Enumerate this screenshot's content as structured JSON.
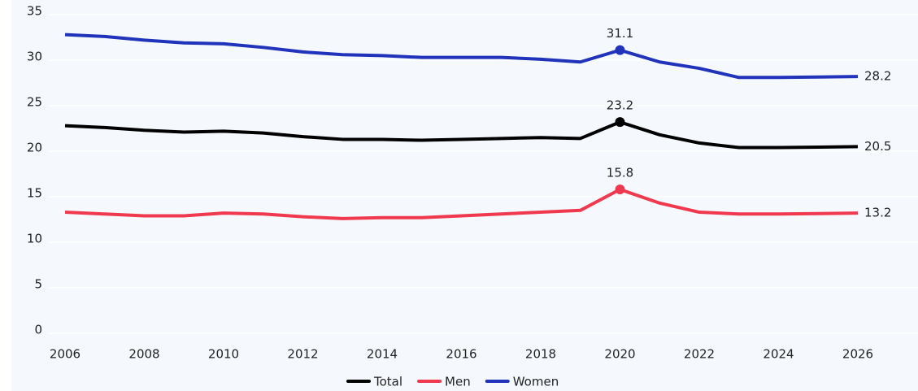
{
  "chart_data": {
    "type": "line",
    "x": [
      2006,
      2007,
      2008,
      2009,
      2010,
      2011,
      2012,
      2013,
      2014,
      2015,
      2016,
      2017,
      2018,
      2019,
      2020,
      2021,
      2022,
      2023,
      2024,
      2025,
      2026
    ],
    "series": [
      {
        "name": "Total",
        "color": "#000000",
        "values": [
          22.8,
          22.6,
          22.3,
          22.1,
          22.2,
          22.0,
          21.6,
          21.3,
          21.3,
          21.2,
          21.3,
          21.4,
          21.5,
          21.4,
          23.2,
          21.8,
          20.9,
          20.4,
          20.4,
          20.45,
          20.5
        ],
        "value_labels": [
          null,
          null,
          null,
          null,
          null,
          null,
          null,
          null,
          null,
          null,
          null,
          null,
          null,
          null,
          "23.2",
          null,
          null,
          null,
          null,
          null,
          "20.5"
        ]
      },
      {
        "name": "Men",
        "color": "#f0394f",
        "values": [
          13.3,
          13.1,
          12.9,
          12.9,
          13.2,
          13.1,
          12.8,
          12.6,
          12.7,
          12.7,
          12.9,
          13.1,
          13.3,
          13.5,
          15.8,
          14.3,
          13.3,
          13.1,
          13.1,
          13.15,
          13.2
        ],
        "value_labels": [
          null,
          null,
          null,
          null,
          null,
          null,
          null,
          null,
          null,
          null,
          null,
          null,
          null,
          null,
          "15.8",
          null,
          null,
          null,
          null,
          null,
          "13.2"
        ]
      },
      {
        "name": "Women",
        "color": "#2233bb",
        "values": [
          32.8,
          32.6,
          32.2,
          31.9,
          31.8,
          31.4,
          30.9,
          30.6,
          30.5,
          30.3,
          30.3,
          30.3,
          30.1,
          29.8,
          31.1,
          29.8,
          29.1,
          28.1,
          28.1,
          28.15,
          28.2
        ],
        "value_labels": [
          null,
          null,
          null,
          null,
          null,
          null,
          null,
          null,
          null,
          null,
          null,
          null,
          null,
          null,
          "31.1",
          null,
          null,
          null,
          null,
          null,
          "28.2"
        ]
      }
    ],
    "xlim": [
      2006,
      2026
    ],
    "xticks": [
      2006,
      2008,
      2010,
      2012,
      2014,
      2016,
      2018,
      2020,
      2022,
      2024,
      2026
    ],
    "ylim": [
      0,
      35
    ],
    "yticks": [
      0,
      5,
      10,
      15,
      20,
      25,
      30,
      35
    ],
    "grid": true,
    "legend": "bottom"
  }
}
